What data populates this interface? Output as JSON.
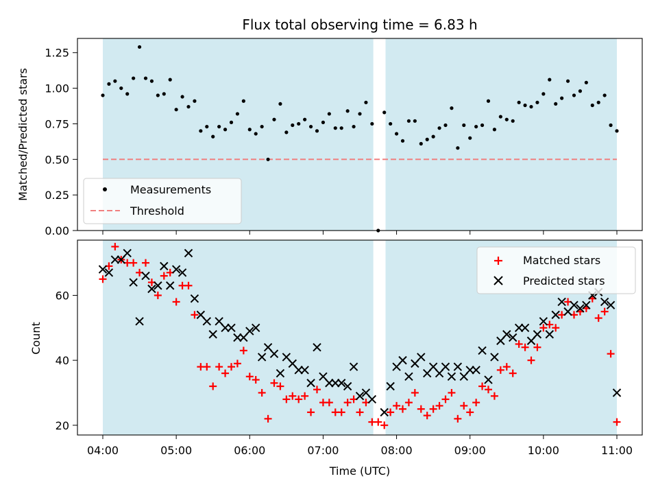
{
  "chart_data": [
    {
      "type": "scatter",
      "title": "Flux total observing time = 6.83 h",
      "ylabel": "Matched/Predicted stars",
      "xlabel": "",
      "x_ticks": [
        "04:00",
        "05:00",
        "06:00",
        "07:00",
        "08:00",
        "09:00",
        "10:00",
        "11:00"
      ],
      "ylim": [
        0,
        1.35
      ],
      "y_ticks": [
        "0.00",
        "0.25",
        "0.50",
        "0.75",
        "1.00",
        "1.25"
      ],
      "legend_position": "lower-left",
      "shaded_intervals": [
        [
          "04:00",
          "07:41"
        ],
        [
          "07:51",
          "11:00"
        ]
      ],
      "shade_color": "#add8e6",
      "threshold": {
        "name": "Threshold",
        "value": 0.5,
        "color": "#f08080"
      },
      "series": [
        {
          "name": "Measurements",
          "color": "#000000",
          "points": [
            [
              "04:00",
              0.95
            ],
            [
              "04:05",
              1.03
            ],
            [
              "04:10",
              1.05
            ],
            [
              "04:15",
              1.0
            ],
            [
              "04:20",
              0.96
            ],
            [
              "04:25",
              1.07
            ],
            [
              "04:30",
              1.29
            ],
            [
              "04:35",
              1.07
            ],
            [
              "04:40",
              1.05
            ],
            [
              "04:45",
              0.95
            ],
            [
              "04:50",
              0.96
            ],
            [
              "04:55",
              1.06
            ],
            [
              "05:00",
              0.85
            ],
            [
              "05:05",
              0.94
            ],
            [
              "05:10",
              0.87
            ],
            [
              "05:15",
              0.91
            ],
            [
              "05:20",
              0.7
            ],
            [
              "05:25",
              0.73
            ],
            [
              "05:30",
              0.66
            ],
            [
              "05:35",
              0.73
            ],
            [
              "05:40",
              0.71
            ],
            [
              "05:45",
              0.76
            ],
            [
              "05:50",
              0.82
            ],
            [
              "05:55",
              0.91
            ],
            [
              "06:00",
              0.71
            ],
            [
              "06:05",
              0.68
            ],
            [
              "06:10",
              0.73
            ],
            [
              "06:15",
              0.5
            ],
            [
              "06:20",
              0.78
            ],
            [
              "06:25",
              0.89
            ],
            [
              "06:30",
              0.69
            ],
            [
              "06:35",
              0.74
            ],
            [
              "06:40",
              0.75
            ],
            [
              "06:45",
              0.78
            ],
            [
              "06:50",
              0.73
            ],
            [
              "06:55",
              0.7
            ],
            [
              "07:00",
              0.76
            ],
            [
              "07:05",
              0.82
            ],
            [
              "07:10",
              0.72
            ],
            [
              "07:15",
              0.72
            ],
            [
              "07:20",
              0.84
            ],
            [
              "07:25",
              0.73
            ],
            [
              "07:30",
              0.82
            ],
            [
              "07:35",
              0.9
            ],
            [
              "07:40",
              0.75
            ],
            [
              "07:45",
              0.0
            ],
            [
              "07:50",
              0.83
            ],
            [
              "07:55",
              0.75
            ],
            [
              "08:00",
              0.68
            ],
            [
              "08:05",
              0.63
            ],
            [
              "08:10",
              0.77
            ],
            [
              "08:15",
              0.77
            ],
            [
              "08:20",
              0.61
            ],
            [
              "08:25",
              0.64
            ],
            [
              "08:30",
              0.66
            ],
            [
              "08:35",
              0.72
            ],
            [
              "08:40",
              0.74
            ],
            [
              "08:45",
              0.86
            ],
            [
              "08:50",
              0.58
            ],
            [
              "08:55",
              0.74
            ],
            [
              "09:00",
              0.65
            ],
            [
              "09:05",
              0.73
            ],
            [
              "09:10",
              0.74
            ],
            [
              "09:15",
              0.91
            ],
            [
              "09:20",
              0.71
            ],
            [
              "09:25",
              0.8
            ],
            [
              "09:30",
              0.78
            ],
            [
              "09:35",
              0.77
            ],
            [
              "09:40",
              0.9
            ],
            [
              "09:45",
              0.88
            ],
            [
              "09:50",
              0.87
            ],
            [
              "09:55",
              0.9
            ],
            [
              "10:00",
              0.96
            ],
            [
              "10:05",
              1.06
            ],
            [
              "10:10",
              0.89
            ],
            [
              "10:15",
              0.93
            ],
            [
              "10:20",
              1.05
            ],
            [
              "10:25",
              0.95
            ],
            [
              "10:30",
              0.98
            ],
            [
              "10:35",
              1.04
            ],
            [
              "10:40",
              0.88
            ],
            [
              "10:45",
              0.9
            ],
            [
              "10:50",
              0.95
            ],
            [
              "10:55",
              0.74
            ],
            [
              "11:00",
              0.7
            ]
          ]
        }
      ]
    },
    {
      "type": "scatter",
      "title": "",
      "ylabel": "Count",
      "xlabel": "Time (UTC)",
      "x_ticks": [
        "04:00",
        "05:00",
        "06:00",
        "07:00",
        "08:00",
        "09:00",
        "10:00",
        "11:00"
      ],
      "ylim": [
        17,
        77
      ],
      "y_ticks": [
        "20",
        "40",
        "60"
      ],
      "legend_position": "upper-right",
      "shaded_intervals": [
        [
          "04:00",
          "07:41"
        ],
        [
          "07:51",
          "11:00"
        ]
      ],
      "shade_color": "#add8e6",
      "series": [
        {
          "name": "Matched stars",
          "color": "#ff0000",
          "marker": "plus",
          "points": [
            [
              "04:00",
              65
            ],
            [
              "04:05",
              69
            ],
            [
              "04:10",
              75
            ],
            [
              "04:15",
              71
            ],
            [
              "04:20",
              70
            ],
            [
              "04:25",
              70
            ],
            [
              "04:30",
              67
            ],
            [
              "04:35",
              70
            ],
            [
              "04:40",
              64
            ],
            [
              "04:45",
              60
            ],
            [
              "04:50",
              66
            ],
            [
              "04:55",
              67
            ],
            [
              "05:00",
              58
            ],
            [
              "05:05",
              63
            ],
            [
              "05:10",
              63
            ],
            [
              "05:15",
              54
            ],
            [
              "05:20",
              38
            ],
            [
              "05:25",
              38
            ],
            [
              "05:30",
              32
            ],
            [
              "05:35",
              38
            ],
            [
              "05:40",
              36
            ],
            [
              "05:45",
              38
            ],
            [
              "05:50",
              39
            ],
            [
              "05:55",
              43
            ],
            [
              "06:00",
              35
            ],
            [
              "06:05",
              34
            ],
            [
              "06:10",
              30
            ],
            [
              "06:15",
              22
            ],
            [
              "06:20",
              33
            ],
            [
              "06:25",
              32
            ],
            [
              "06:30",
              28
            ],
            [
              "06:35",
              29
            ],
            [
              "06:40",
              28
            ],
            [
              "06:45",
              29
            ],
            [
              "06:50",
              24
            ],
            [
              "06:55",
              31
            ],
            [
              "07:00",
              27
            ],
            [
              "07:05",
              27
            ],
            [
              "07:10",
              24
            ],
            [
              "07:15",
              24
            ],
            [
              "07:20",
              27
            ],
            [
              "07:25",
              28
            ],
            [
              "07:30",
              24
            ],
            [
              "07:35",
              27
            ],
            [
              "07:40",
              21
            ],
            [
              "07:45",
              21
            ],
            [
              "07:50",
              20
            ],
            [
              "07:55",
              24
            ],
            [
              "08:00",
              26
            ],
            [
              "08:05",
              25
            ],
            [
              "08:10",
              27
            ],
            [
              "08:15",
              30
            ],
            [
              "08:20",
              25
            ],
            [
              "08:25",
              23
            ],
            [
              "08:30",
              25
            ],
            [
              "08:35",
              26
            ],
            [
              "08:40",
              28
            ],
            [
              "08:45",
              30
            ],
            [
              "08:50",
              22
            ],
            [
              "08:55",
              26
            ],
            [
              "09:00",
              24
            ],
            [
              "09:05",
              27
            ],
            [
              "09:10",
              32
            ],
            [
              "09:15",
              31
            ],
            [
              "09:20",
              29
            ],
            [
              "09:25",
              37
            ],
            [
              "09:30",
              38
            ],
            [
              "09:35",
              36
            ],
            [
              "09:40",
              45
            ],
            [
              "09:45",
              44
            ],
            [
              "09:50",
              40
            ],
            [
              "09:55",
              44
            ],
            [
              "10:00",
              50
            ],
            [
              "10:05",
              51
            ],
            [
              "10:10",
              50
            ],
            [
              "10:15",
              54
            ],
            [
              "10:20",
              58
            ],
            [
              "10:25",
              54
            ],
            [
              "10:30",
              55
            ],
            [
              "10:35",
              56
            ],
            [
              "10:40",
              59
            ],
            [
              "10:45",
              53
            ],
            [
              "10:50",
              55
            ],
            [
              "10:55",
              42
            ],
            [
              "11:00",
              21
            ]
          ]
        },
        {
          "name": "Predicted stars",
          "color": "#000000",
          "marker": "x",
          "points": [
            [
              "04:00",
              68
            ],
            [
              "04:05",
              67
            ],
            [
              "04:10",
              71
            ],
            [
              "04:15",
              71
            ],
            [
              "04:20",
              73
            ],
            [
              "04:25",
              64
            ],
            [
              "04:30",
              52
            ],
            [
              "04:35",
              66
            ],
            [
              "04:40",
              62
            ],
            [
              "04:45",
              63
            ],
            [
              "04:50",
              69
            ],
            [
              "04:55",
              63
            ],
            [
              "05:00",
              68
            ],
            [
              "05:05",
              67
            ],
            [
              "05:10",
              73
            ],
            [
              "05:15",
              59
            ],
            [
              "05:20",
              54
            ],
            [
              "05:25",
              52
            ],
            [
              "05:30",
              48
            ],
            [
              "05:35",
              52
            ],
            [
              "05:40",
              50
            ],
            [
              "05:45",
              50
            ],
            [
              "05:50",
              47
            ],
            [
              "05:55",
              47
            ],
            [
              "06:00",
              49
            ],
            [
              "06:05",
              50
            ],
            [
              "06:10",
              41
            ],
            [
              "06:15",
              44
            ],
            [
              "06:20",
              42
            ],
            [
              "06:25",
              36
            ],
            [
              "06:30",
              41
            ],
            [
              "06:35",
              39
            ],
            [
              "06:40",
              37
            ],
            [
              "06:45",
              37
            ],
            [
              "06:50",
              33
            ],
            [
              "06:55",
              44
            ],
            [
              "07:00",
              35
            ],
            [
              "07:05",
              33
            ],
            [
              "07:10",
              33
            ],
            [
              "07:15",
              33
            ],
            [
              "07:20",
              32
            ],
            [
              "07:25",
              38
            ],
            [
              "07:30",
              29
            ],
            [
              "07:35",
              30
            ],
            [
              "07:40",
              28
            ],
            [
              "07:50",
              24
            ],
            [
              "07:55",
              32
            ],
            [
              "08:00",
              38
            ],
            [
              "08:05",
              40
            ],
            [
              "08:10",
              35
            ],
            [
              "08:15",
              39
            ],
            [
              "08:20",
              41
            ],
            [
              "08:25",
              36
            ],
            [
              "08:30",
              38
            ],
            [
              "08:35",
              36
            ],
            [
              "08:40",
              38
            ],
            [
              "08:45",
              35
            ],
            [
              "08:50",
              38
            ],
            [
              "08:55",
              35
            ],
            [
              "09:00",
              37
            ],
            [
              "09:05",
              37
            ],
            [
              "09:10",
              43
            ],
            [
              "09:15",
              34
            ],
            [
              "09:20",
              41
            ],
            [
              "09:25",
              46
            ],
            [
              "09:30",
              48
            ],
            [
              "09:35",
              47
            ],
            [
              "09:40",
              50
            ],
            [
              "09:45",
              50
            ],
            [
              "09:50",
              46
            ],
            [
              "09:55",
              48
            ],
            [
              "10:00",
              52
            ],
            [
              "10:05",
              48
            ],
            [
              "10:10",
              54
            ],
            [
              "10:15",
              58
            ],
            [
              "10:20",
              55
            ],
            [
              "10:25",
              57
            ],
            [
              "10:30",
              56
            ],
            [
              "10:35",
              57
            ],
            [
              "10:40",
              60
            ],
            [
              "10:45",
              61
            ],
            [
              "10:50",
              58
            ],
            [
              "10:55",
              57
            ],
            [
              "11:00",
              30
            ]
          ]
        }
      ]
    }
  ]
}
